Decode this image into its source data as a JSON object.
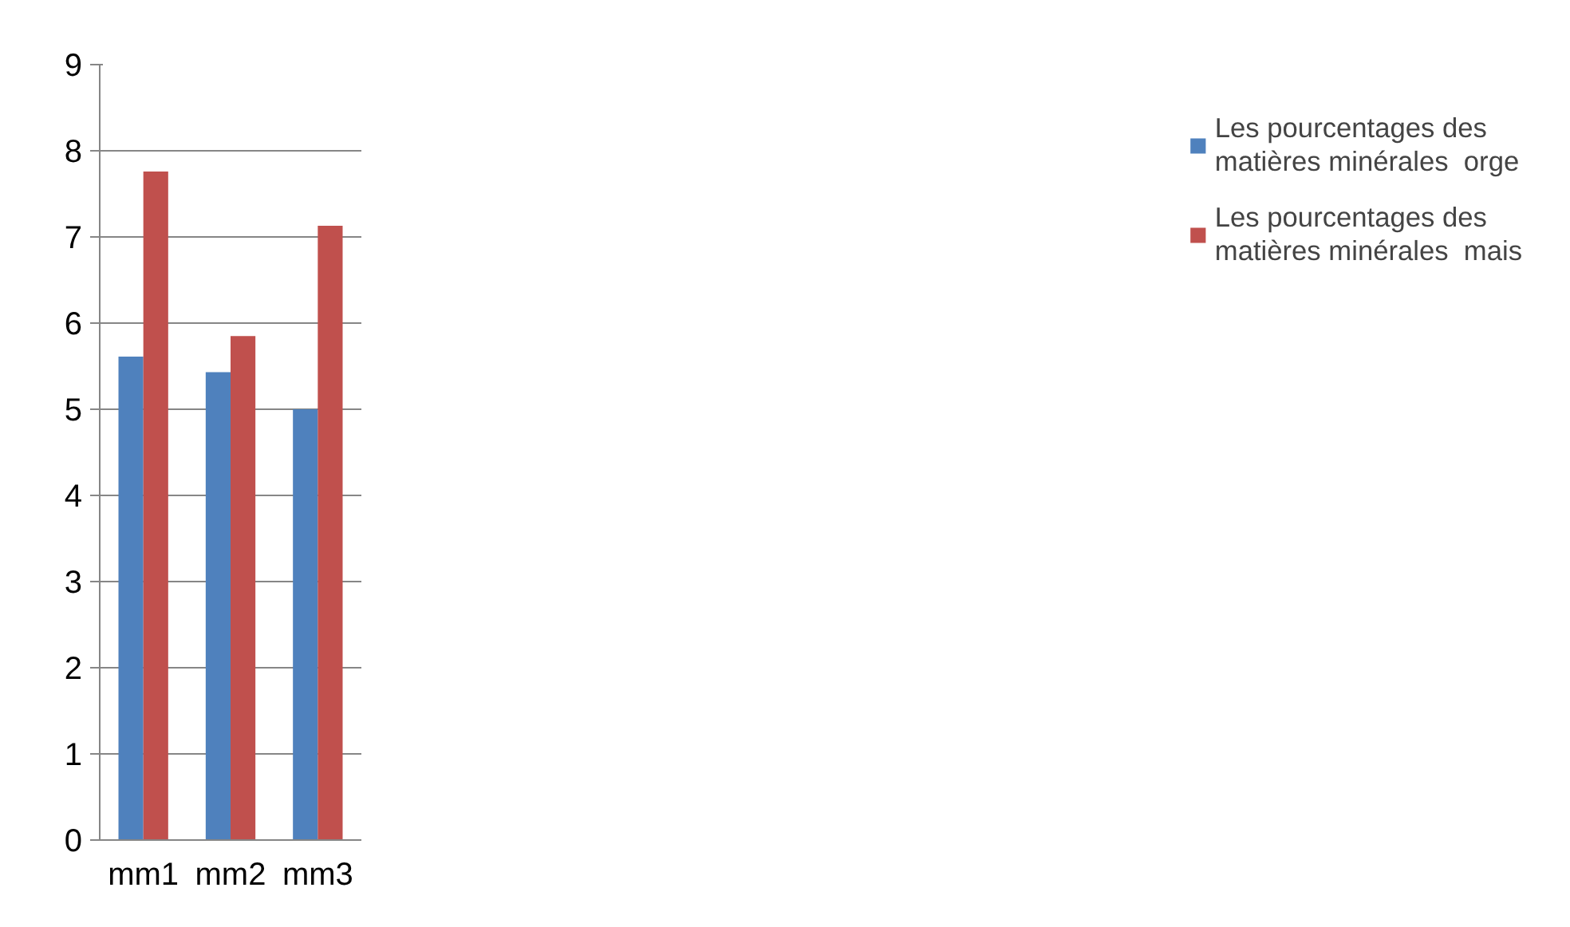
{
  "chart_data": {
    "type": "bar",
    "categories": [
      "mm1",
      "mm2",
      "mm3"
    ],
    "series": [
      {
        "name": "Les pourcentages des matières minérales  orge",
        "color": "#4f81bd",
        "values": [
          5.61,
          5.43,
          5.0
        ]
      },
      {
        "name": "Les pourcentages des matières minérales  mais",
        "color": "#c0504d",
        "values": [
          7.76,
          5.85,
          7.13
        ]
      }
    ],
    "ylim": [
      0,
      9
    ],
    "yticks": [
      0,
      1,
      2,
      3,
      4,
      5,
      6,
      7,
      8,
      9
    ],
    "grid": "y",
    "legend": "right"
  }
}
